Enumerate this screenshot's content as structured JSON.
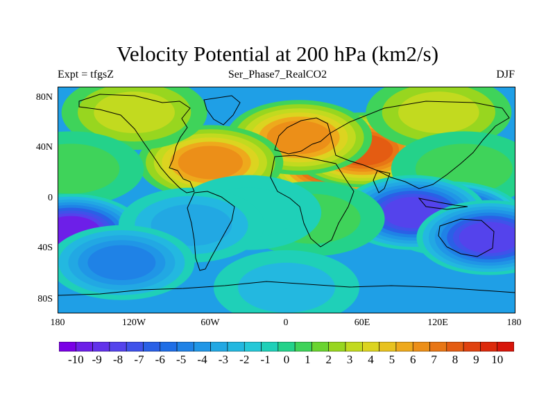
{
  "title": "Velocity Potential at 200 hPa (km2/s)",
  "subtitle_left": "Expt = tfgsZ",
  "subtitle_center": "Ser_Phase7_RealCO2",
  "subtitle_right": "DJF",
  "y_axis": {
    "labels": [
      "80N",
      "40N",
      "0",
      "40S",
      "80S"
    ]
  },
  "x_axis": {
    "labels": [
      "180",
      "120W",
      "60W",
      "0",
      "60E",
      "120E",
      "180"
    ]
  },
  "colorbar": {
    "labels": [
      "-10",
      "-9",
      "-8",
      "-7",
      "-6",
      "-5",
      "-4",
      "-3",
      "-2",
      "-1",
      "0",
      "1",
      "2",
      "3",
      "4",
      "5",
      "6",
      "7",
      "8",
      "9",
      "10"
    ],
    "colors": [
      "#7a00e6",
      "#6d1fe8",
      "#6232ea",
      "#5443ec",
      "#3f52ea",
      "#2a60e6",
      "#1f6ee6",
      "#1f82e6",
      "#2096e6",
      "#22a8e3",
      "#23b8e0",
      "#25c8d8",
      "#1fd0b8",
      "#24d28a",
      "#3fd35a",
      "#6ad430",
      "#98d61f",
      "#c2da1f",
      "#dcd420",
      "#e8c21f",
      "#eea91c",
      "#ec8f18",
      "#e87615",
      "#e45c12",
      "#e0420f",
      "#dc2a0c",
      "#d8150a"
    ]
  },
  "field": {
    "background_color": "#1f9fe6",
    "centers": [
      {
        "lon": -10,
        "lat": 22,
        "value": 9.5
      },
      {
        "lon": 40,
        "lat": 28,
        "value": 9.0
      },
      {
        "lon": 60,
        "lat": 40,
        "value": 8.0
      },
      {
        "lon": 10,
        "lat": 50,
        "value": 6.0
      },
      {
        "lon": -60,
        "lat": 30,
        "value": 6.0
      },
      {
        "lon": 120,
        "lat": 70,
        "value": 3.0
      },
      {
        "lon": -120,
        "lat": 70,
        "value": 3.0
      },
      {
        "lon": -170,
        "lat": 25,
        "value": 0.5
      },
      {
        "lon": 140,
        "lat": 25,
        "value": 0.5
      },
      {
        "lon": 130,
        "lat": -15,
        "value": -9.5
      },
      {
        "lon": 100,
        "lat": -10,
        "value": -8.0
      },
      {
        "lon": 160,
        "lat": -30,
        "value": -8.0
      },
      {
        "lon": -170,
        "lat": -25,
        "value": -9.0
      },
      {
        "lon": 20,
        "lat": -15,
        "value": 0.5
      },
      {
        "lon": -30,
        "lat": -10,
        "value": -1.0
      },
      {
        "lon": -75,
        "lat": -20,
        "value": -3.0
      },
      {
        "lon": 0,
        "lat": -70,
        "value": -2.0
      },
      {
        "lon": -130,
        "lat": -50,
        "value": -5.0
      }
    ],
    "coastlines": "black outline"
  }
}
